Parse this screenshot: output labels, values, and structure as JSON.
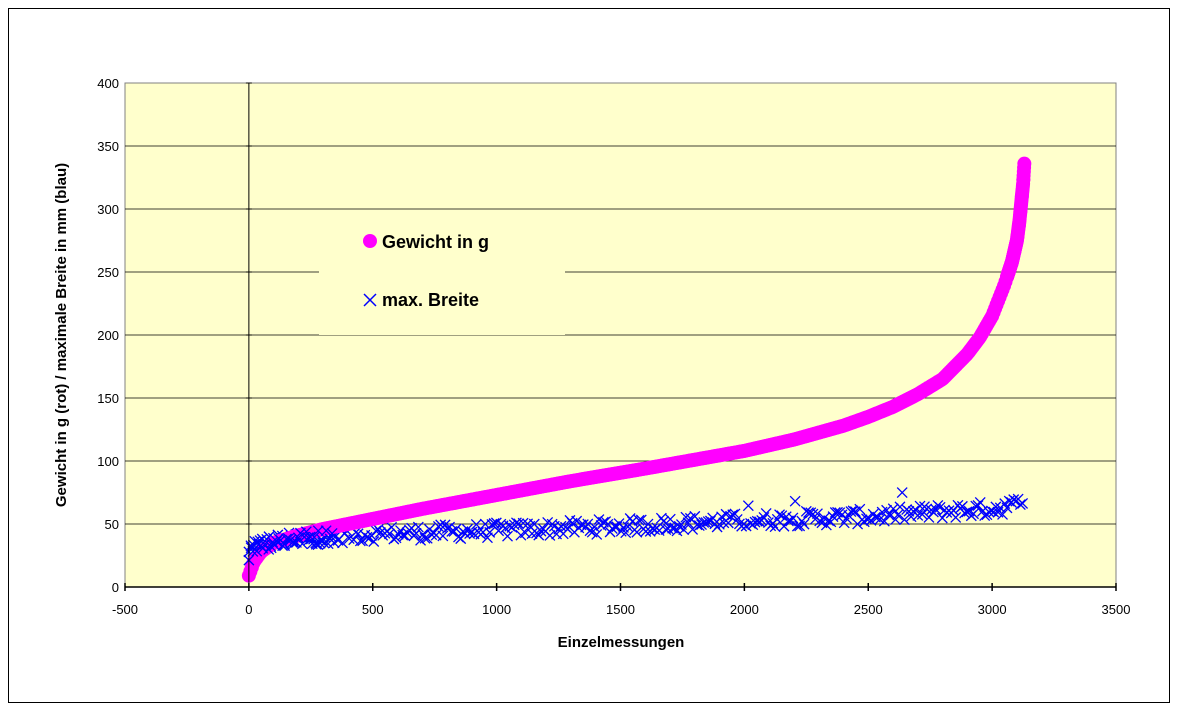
{
  "chart_data": {
    "type": "scatter",
    "xlabel": "Einzelmessungen",
    "ylabel": "Gewicht in g  (rot) / maximale Breite in mm (blau)",
    "xlim": [
      -500,
      3500
    ],
    "ylim": [
      0,
      400
    ],
    "x_ticks": [
      -500,
      0,
      500,
      1000,
      1500,
      2000,
      2500,
      3000,
      3500
    ],
    "y_ticks": [
      0,
      50,
      100,
      150,
      200,
      250,
      300,
      350,
      400
    ],
    "grid": "horizontal",
    "legend_position": "center-left",
    "n_points": 3130,
    "series": [
      {
        "name": "Gewicht in g",
        "marker": "circle",
        "color": "#ff00ff",
        "x": [
          0,
          20,
          50,
          100,
          200,
          300,
          400,
          500,
          700,
          1000,
          1300,
          1600,
          1800,
          2000,
          2200,
          2400,
          2500,
          2600,
          2700,
          2800,
          2900,
          2950,
          3000,
          3050,
          3080,
          3100,
          3110,
          3120,
          3125,
          3130
        ],
        "y": [
          9,
          20,
          28,
          35,
          41,
          46,
          50,
          54,
          62,
          73,
          84,
          94,
          101,
          108,
          117,
          128,
          135,
          143,
          153,
          165,
          185,
          198,
          215,
          240,
          258,
          275,
          290,
          310,
          320,
          336
        ]
      },
      {
        "name": "max. Breite",
        "marker": "x",
        "color": "#0000ff",
        "x": [
          0,
          10,
          30,
          60,
          100,
          200,
          300,
          400,
          500,
          700,
          1000,
          1300,
          1600,
          1900,
          2200,
          2500,
          2800,
          3000,
          3130
        ],
        "y": [
          26,
          30,
          33,
          35,
          36,
          38,
          40,
          41,
          42,
          43,
          45,
          47,
          49,
          52,
          54,
          56,
          60,
          62,
          66
        ],
        "spread": 6
      }
    ]
  }
}
